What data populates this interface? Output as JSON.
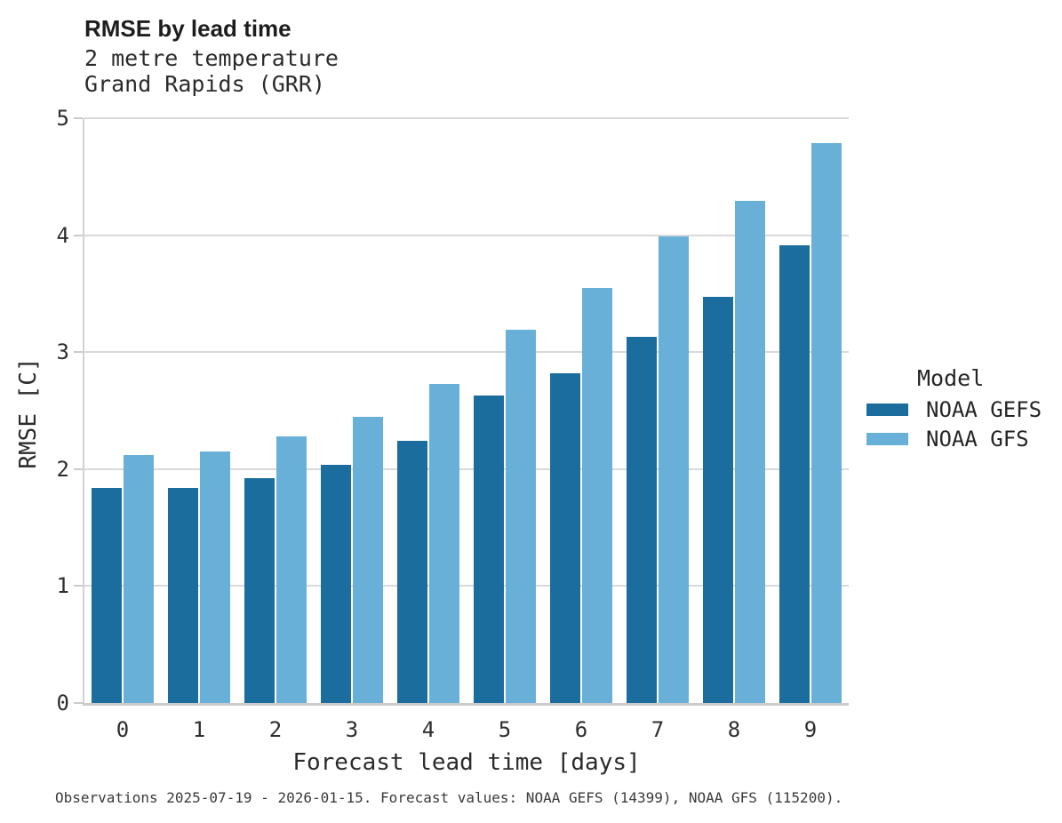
{
  "header": {
    "title": "RMSE by lead time",
    "subtitle_line1": "2 metre temperature",
    "subtitle_line2": "Grand Rapids (GRR)"
  },
  "chart_data": {
    "type": "bar",
    "title": "RMSE by lead time",
    "subtitle_lines": [
      "2 metre temperature",
      "Grand Rapids (GRR)"
    ],
    "categories": [
      "0",
      "1",
      "2",
      "3",
      "4",
      "5",
      "6",
      "7",
      "8",
      "9"
    ],
    "series": [
      {
        "name": "NOAA GEFS",
        "color": "#1b6d9e",
        "values": [
          1.84,
          1.84,
          1.92,
          2.04,
          2.24,
          2.63,
          2.82,
          3.13,
          3.47,
          3.91
        ]
      },
      {
        "name": "NOAA GFS",
        "color": "#69b0d9",
        "values": [
          2.12,
          2.15,
          2.28,
          2.45,
          2.73,
          3.19,
          3.55,
          3.99,
          4.29,
          4.79
        ]
      }
    ],
    "xlabel": "Forecast lead time [days]",
    "ylabel": "RMSE [C]",
    "ylim": [
      0,
      5
    ],
    "y_ticks": [
      0,
      1,
      2,
      3,
      4,
      5
    ],
    "grid": "horizontal-only",
    "legend_position": "right-center"
  },
  "legend": {
    "title": "Model"
  },
  "footer": {
    "caption": "Observations 2025-07-19 - 2026-01-15. Forecast values: NOAA GEFS (14399), NOAA GFS (115200)."
  }
}
